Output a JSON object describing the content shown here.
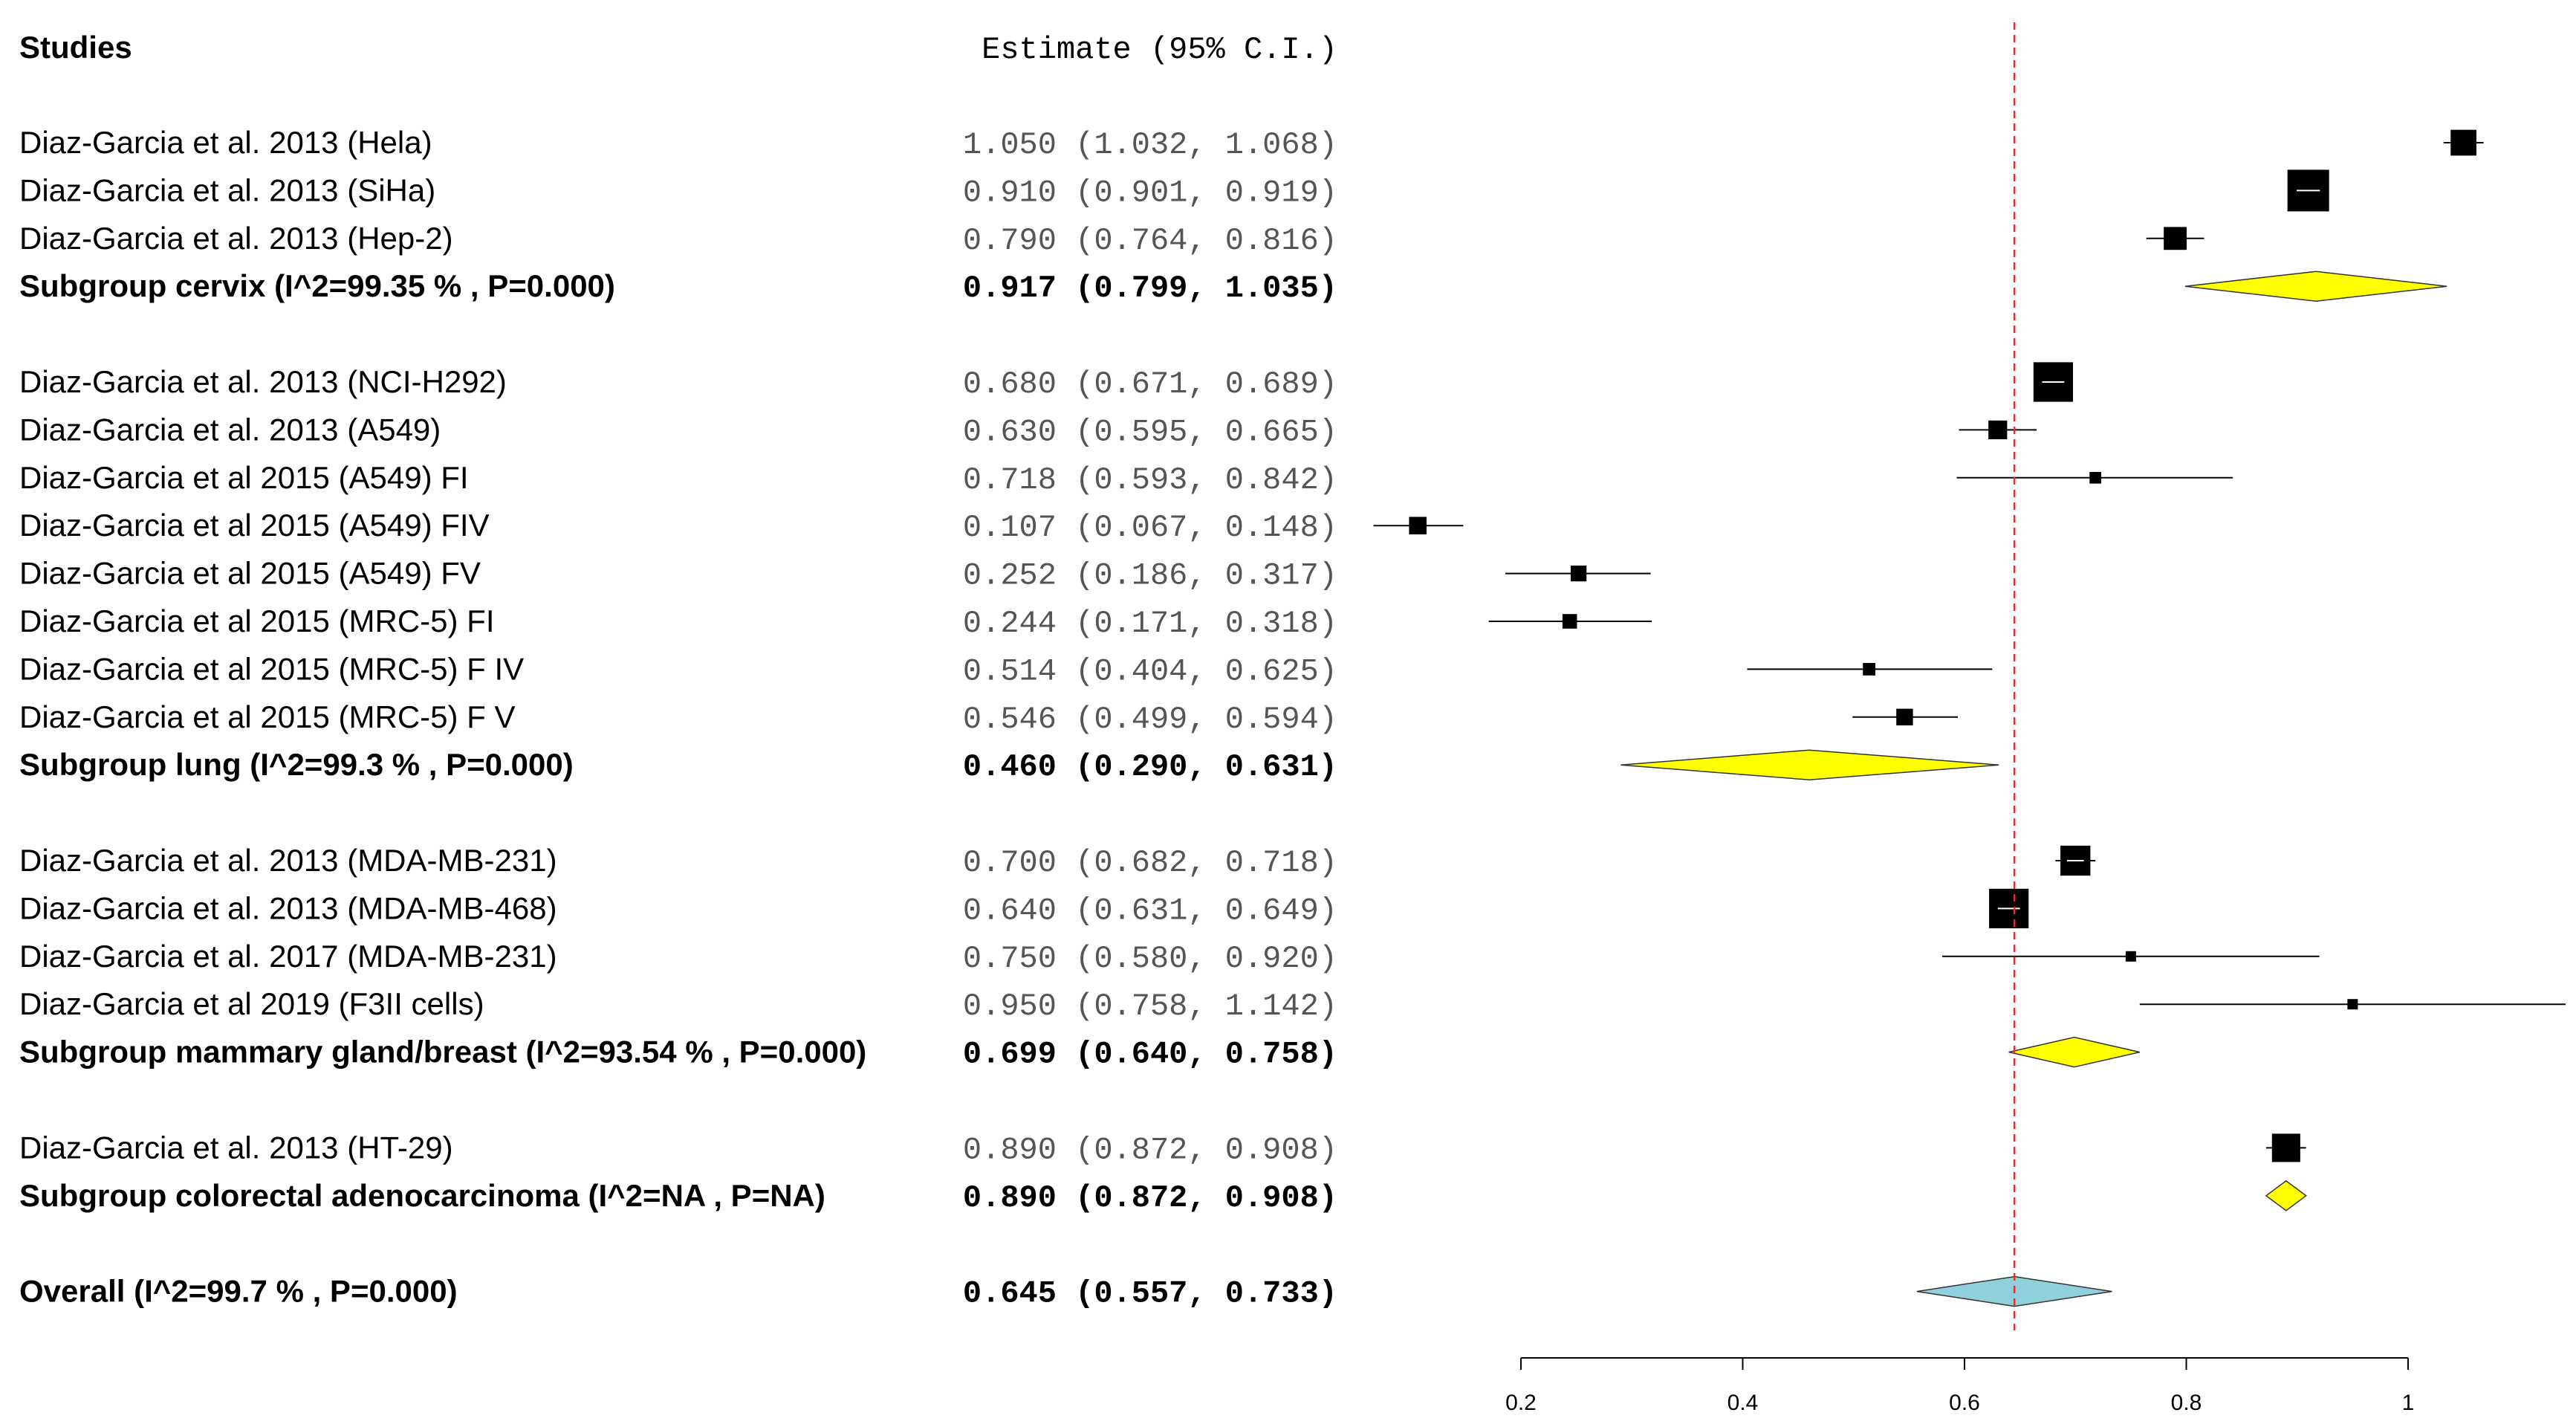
{
  "chart_data": {
    "type": "forest",
    "header": {
      "studies": "Studies",
      "estimate": "Estimate (95% C.I.)"
    },
    "reference_line": 0.645,
    "xlim": [
      0.2,
      1.0
    ],
    "xticks": [
      "0.2",
      "0.4",
      "0.6",
      "0.8",
      "1"
    ],
    "xtick_values": [
      0.2,
      0.4,
      0.6,
      0.8,
      1.0
    ],
    "rows": [
      {
        "kind": "study",
        "label": "Diaz-Garcia et al. 2013 (Hela)",
        "est": 1.05,
        "lo": 1.032,
        "hi": 1.068,
        "text": "1.050 (1.032, 1.068)",
        "weight": 0.62
      },
      {
        "kind": "study",
        "label": "Diaz-Garcia et al. 2013 (SiHa)",
        "est": 0.91,
        "lo": 0.901,
        "hi": 0.919,
        "text": "0.910 (0.901, 0.919)",
        "weight": 1.0
      },
      {
        "kind": "study",
        "label": "Diaz-Garcia et al. 2013 (Hep-2)",
        "est": 0.79,
        "lo": 0.764,
        "hi": 0.816,
        "text": "0.790 (0.764, 0.816)",
        "weight": 0.55
      },
      {
        "kind": "subgroup",
        "label": "Subgroup cervix (I^2=99.35 % , P=0.000)",
        "est": 0.917,
        "lo": 0.799,
        "hi": 1.035,
        "text": "0.917 (0.799, 1.035)",
        "color": "#ffff00"
      },
      {
        "kind": "gap"
      },
      {
        "kind": "study",
        "label": "Diaz-Garcia et al. 2013 (NCI-H292)",
        "est": 0.68,
        "lo": 0.671,
        "hi": 0.689,
        "text": "0.680 (0.671, 0.689)",
        "weight": 0.95
      },
      {
        "kind": "study",
        "label": "Diaz-Garcia et al. 2013 (A549)",
        "est": 0.63,
        "lo": 0.595,
        "hi": 0.665,
        "text": "0.630 (0.595, 0.665)",
        "weight": 0.45
      },
      {
        "kind": "study",
        "label": "Diaz-Garcia et al 2015 (A549) FI",
        "est": 0.718,
        "lo": 0.593,
        "hi": 0.842,
        "text": "0.718 (0.593, 0.842)",
        "weight": 0.28
      },
      {
        "kind": "study",
        "label": "Diaz-Garcia et al 2015 (A549) FIV",
        "est": 0.107,
        "lo": 0.067,
        "hi": 0.148,
        "text": "0.107 (0.067, 0.148)",
        "weight": 0.42
      },
      {
        "kind": "study",
        "label": "Diaz-Garcia et al 2015 (A549) FV",
        "est": 0.252,
        "lo": 0.186,
        "hi": 0.317,
        "text": "0.252 (0.186, 0.317)",
        "weight": 0.38
      },
      {
        "kind": "study",
        "label": "Diaz-Garcia et al 2015 (MRC-5) FI",
        "est": 0.244,
        "lo": 0.171,
        "hi": 0.318,
        "text": "0.244 (0.171, 0.318)",
        "weight": 0.35
      },
      {
        "kind": "study",
        "label": "Diaz-Garcia et al 2015 (MRC-5) F IV",
        "est": 0.514,
        "lo": 0.404,
        "hi": 0.625,
        "text": "0.514 (0.404, 0.625)",
        "weight": 0.3
      },
      {
        "kind": "study",
        "label": "Diaz-Garcia et al 2015 (MRC-5) F V",
        "est": 0.546,
        "lo": 0.499,
        "hi": 0.594,
        "text": "0.546 (0.499, 0.594)",
        "weight": 0.4
      },
      {
        "kind": "subgroup",
        "label": "Subgroup lung (I^2=99.3 % , P=0.000)",
        "est": 0.46,
        "lo": 0.29,
        "hi": 0.631,
        "text": "0.460 (0.290, 0.631)",
        "color": "#ffff00"
      },
      {
        "kind": "gap"
      },
      {
        "kind": "study",
        "label": "Diaz-Garcia et al. 2013 (MDA-MB-231)",
        "est": 0.7,
        "lo": 0.682,
        "hi": 0.718,
        "text": "0.700 (0.682, 0.718)",
        "weight": 0.72
      },
      {
        "kind": "study",
        "label": "Diaz-Garcia et al. 2013 (MDA-MB-468)",
        "est": 0.64,
        "lo": 0.631,
        "hi": 0.649,
        "text": "0.640 (0.631, 0.649)",
        "weight": 0.95
      },
      {
        "kind": "study",
        "label": "Diaz-Garcia et al. 2017 (MDA-MB-231)",
        "est": 0.75,
        "lo": 0.58,
        "hi": 0.92,
        "text": "0.750 (0.580, 0.920)",
        "weight": 0.2
      },
      {
        "kind": "study",
        "label": "Diaz-Garcia et al 2019 (F3II cells)",
        "est": 0.95,
        "lo": 0.758,
        "hi": 1.142,
        "text": "0.950 (0.758, 1.142)",
        "weight": 0.18
      },
      {
        "kind": "subgroup",
        "label": "Subgroup mammary gland/breast (I^2=93.54 % , P=0.000)",
        "est": 0.699,
        "lo": 0.64,
        "hi": 0.758,
        "text": "0.699 (0.640, 0.758)",
        "color": "#ffff00"
      },
      {
        "kind": "gap"
      },
      {
        "kind": "study",
        "label": "Diaz-Garcia et al. 2013 (HT-29)",
        "est": 0.89,
        "lo": 0.872,
        "hi": 0.908,
        "text": "0.890 (0.872, 0.908)",
        "weight": 0.68
      },
      {
        "kind": "subgroup",
        "label": "Subgroup colorectal adenocarcinoma (I^2=NA , P=NA)",
        "est": 0.89,
        "lo": 0.872,
        "hi": 0.908,
        "text": "0.890 (0.872, 0.908)",
        "color": "#ffff00"
      },
      {
        "kind": "gap"
      },
      {
        "kind": "overall",
        "label": "Overall (I^2=99.7 % , P=0.000)",
        "est": 0.645,
        "lo": 0.557,
        "hi": 0.733,
        "text": "0.645 (0.557, 0.733)",
        "color": "#8fd0dc"
      }
    ]
  }
}
